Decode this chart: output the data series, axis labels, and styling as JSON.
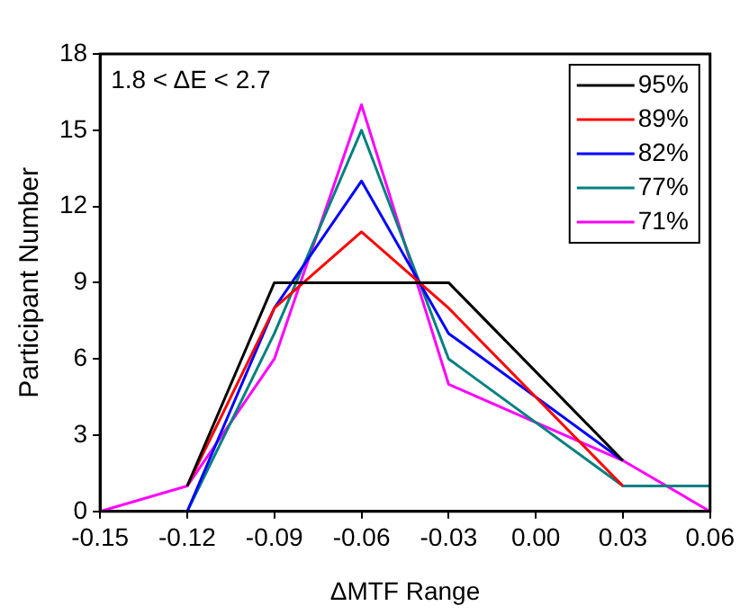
{
  "chart_data": {
    "type": "line",
    "xlabel": "ΔMTF Range",
    "ylabel": "Participant Number",
    "annotations": [
      "1.8 < ΔE < 2.7"
    ],
    "xlim": [
      -0.15,
      0.06
    ],
    "xticks": [
      {
        "value": -0.15,
        "label": "-0.15"
      },
      {
        "value": -0.12,
        "label": "-0.12"
      },
      {
        "value": -0.09,
        "label": "-0.09"
      },
      {
        "value": -0.06,
        "label": "-0.06"
      },
      {
        "value": -0.03,
        "label": "-0.03"
      },
      {
        "value": 0,
        "label": "0.00"
      },
      {
        "value": 0.03,
        "label": "0.03"
      },
      {
        "value": 0.06,
        "label": "0.06"
      }
    ],
    "ylim": [
      0,
      18
    ],
    "yticks": [
      0,
      3,
      6,
      9,
      12,
      15,
      18
    ],
    "grid": false,
    "legend": "top right",
    "marker": "none",
    "line_style": "solid",
    "series": [
      {
        "name": "95%",
        "color": "#000000",
        "x": [
          -0.12,
          -0.09,
          -0.06,
          -0.03,
          0.03
        ],
        "values": [
          1,
          9,
          9,
          9,
          2
        ]
      },
      {
        "name": "89%",
        "color": "#ff0000",
        "x": [
          -0.12,
          -0.09,
          -0.06,
          -0.03,
          0.03
        ],
        "values": [
          1,
          8,
          11,
          8,
          1
        ]
      },
      {
        "name": "82%",
        "color": "#0000ff",
        "x": [
          -0.12,
          -0.09,
          -0.06,
          -0.03,
          0.03
        ],
        "values": [
          0,
          8,
          13,
          7,
          2
        ]
      },
      {
        "name": "77%",
        "color": "#008080",
        "x": [
          -0.12,
          -0.09,
          -0.06,
          -0.03,
          0.03,
          0.06
        ],
        "values": [
          0,
          7,
          15,
          6,
          1,
          1
        ]
      },
      {
        "name": "71%",
        "color": "#ff00ff",
        "x": [
          -0.15,
          -0.12,
          -0.09,
          -0.06,
          -0.03,
          0.03,
          0.06
        ],
        "values": [
          0,
          1,
          6,
          16,
          5,
          2,
          0
        ]
      }
    ]
  }
}
